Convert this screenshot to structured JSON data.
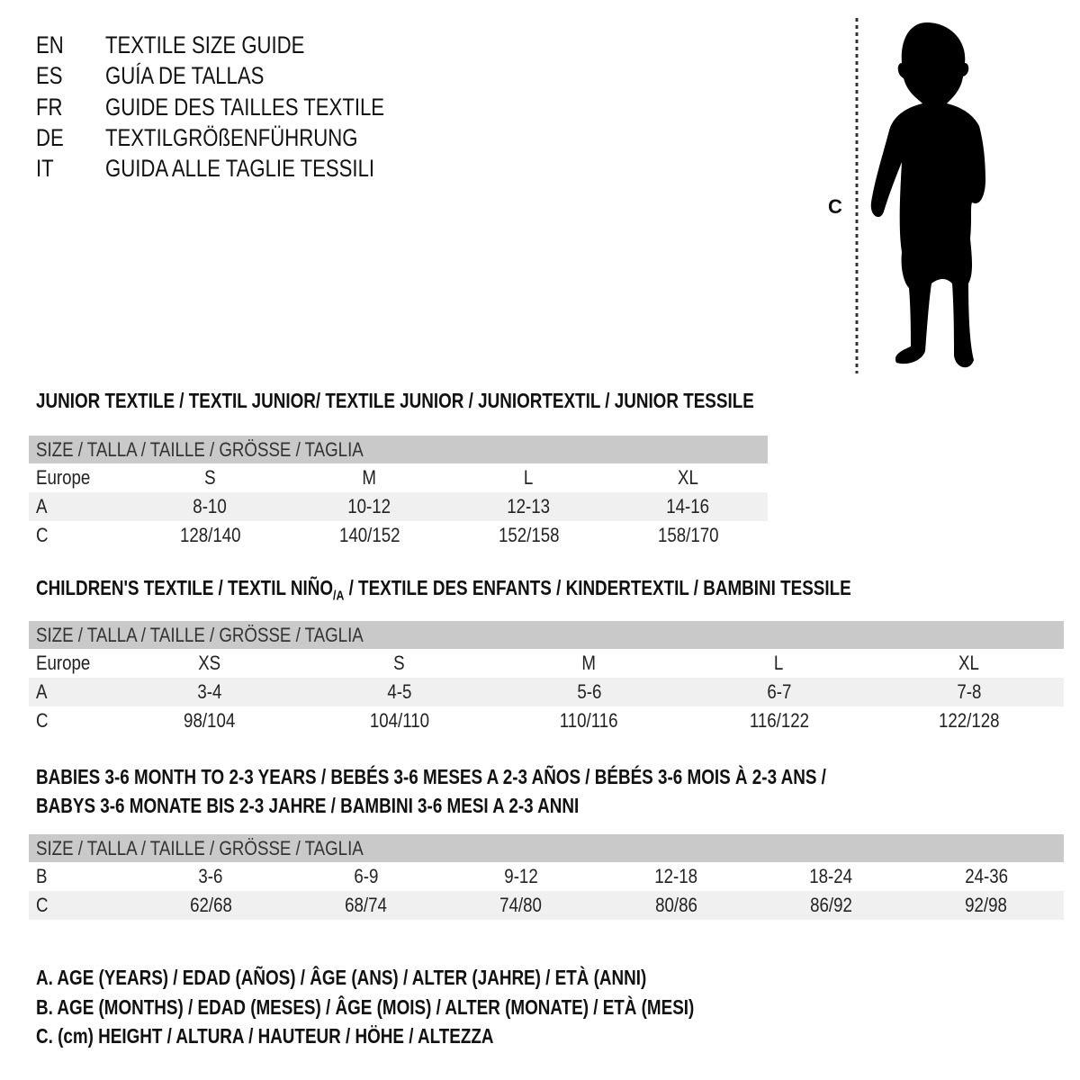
{
  "titles": [
    {
      "code": "EN",
      "text": "TEXTILE SIZE GUIDE"
    },
    {
      "code": "ES",
      "text": "GUÍA DE TALLAS"
    },
    {
      "code": "FR",
      "text": "GUIDE DES TAILLES TEXTILE"
    },
    {
      "code": "DE",
      "text": "TEXTILGRÖßENFÜHRUNG"
    },
    {
      "code": "IT",
      "text": "GUIDA ALLE TAGLIE TESSILI"
    }
  ],
  "figure": {
    "label": "C",
    "icon": "child-silhouette-icon"
  },
  "junior": {
    "heading": "JUNIOR TEXTILE / TEXTIL JUNIOR/ TEXTILE JUNIOR / JUNIORTEXTIL / JUNIOR TESSILE",
    "header": "SIZE / TALLA / TAILLE / GRÖSSE / TAGLIA",
    "rows": [
      {
        "label": "Europe",
        "values": [
          "S",
          "M",
          "L",
          "XL"
        ]
      },
      {
        "label": "A",
        "values": [
          "8-10",
          "10-12",
          "12-13",
          "14-16"
        ]
      },
      {
        "label": "C",
        "values": [
          "128/140",
          "140/152",
          "152/158",
          "158/170"
        ]
      }
    ]
  },
  "children": {
    "heading_main": "CHILDREN'S TEXTILE / TEXTIL NIÑO",
    "heading_sub": "/A",
    "heading_rest": " / TEXTILE DES ENFANTS / KINDERTEXTIL / BAMBINI TESSILE",
    "header": "SIZE / TALLA / TAILLE / GRÖSSE / TAGLIA",
    "rows": [
      {
        "label": "Europe",
        "values": [
          "XS",
          "S",
          "M",
          "L",
          "XL"
        ]
      },
      {
        "label": "A",
        "values": [
          "3-4",
          "4-5",
          "5-6",
          "6-7",
          "7-8"
        ]
      },
      {
        "label": "C",
        "values": [
          "98/104",
          "104/110",
          "110/116",
          "116/122",
          "122/128"
        ]
      }
    ]
  },
  "babies": {
    "heading_line1": "BABIES 3-6 MONTH TO 2-3 YEARS / BEBÉS 3-6 MESES A 2-3 AÑOS / BÉBÉS 3-6 MOIS À 2-3 ANS /",
    "heading_line2": "BABYS 3-6 MONATE BIS 2-3 JAHRE / BAMBINI 3-6 MESI A 2-3 ANNI",
    "header": "SIZE / TALLA / TAILLE / GRÖSSE / TAGLIA",
    "rows": [
      {
        "label": "B",
        "values": [
          "3-6",
          "6-9",
          "9-12",
          "12-18",
          "18-24",
          "24-36"
        ]
      },
      {
        "label": "C",
        "values": [
          "62/68",
          "68/74",
          "74/80",
          "80/86",
          "86/92",
          "92/98"
        ]
      }
    ]
  },
  "legend": [
    "A. AGE (YEARS) / EDAD (AÑOS) / ÂGE (ANS) / ALTER (JAHRE) / ETÀ (ANNI)",
    "B. AGE (MONTHS) / EDAD (MESES) / ÂGE (MOIS) / ALTER (MONATE) / ETÀ (MESI)",
    "C. (cm) HEIGHT / ALTURA / HAUTEUR / HÖHE / ALTEZZA"
  ]
}
